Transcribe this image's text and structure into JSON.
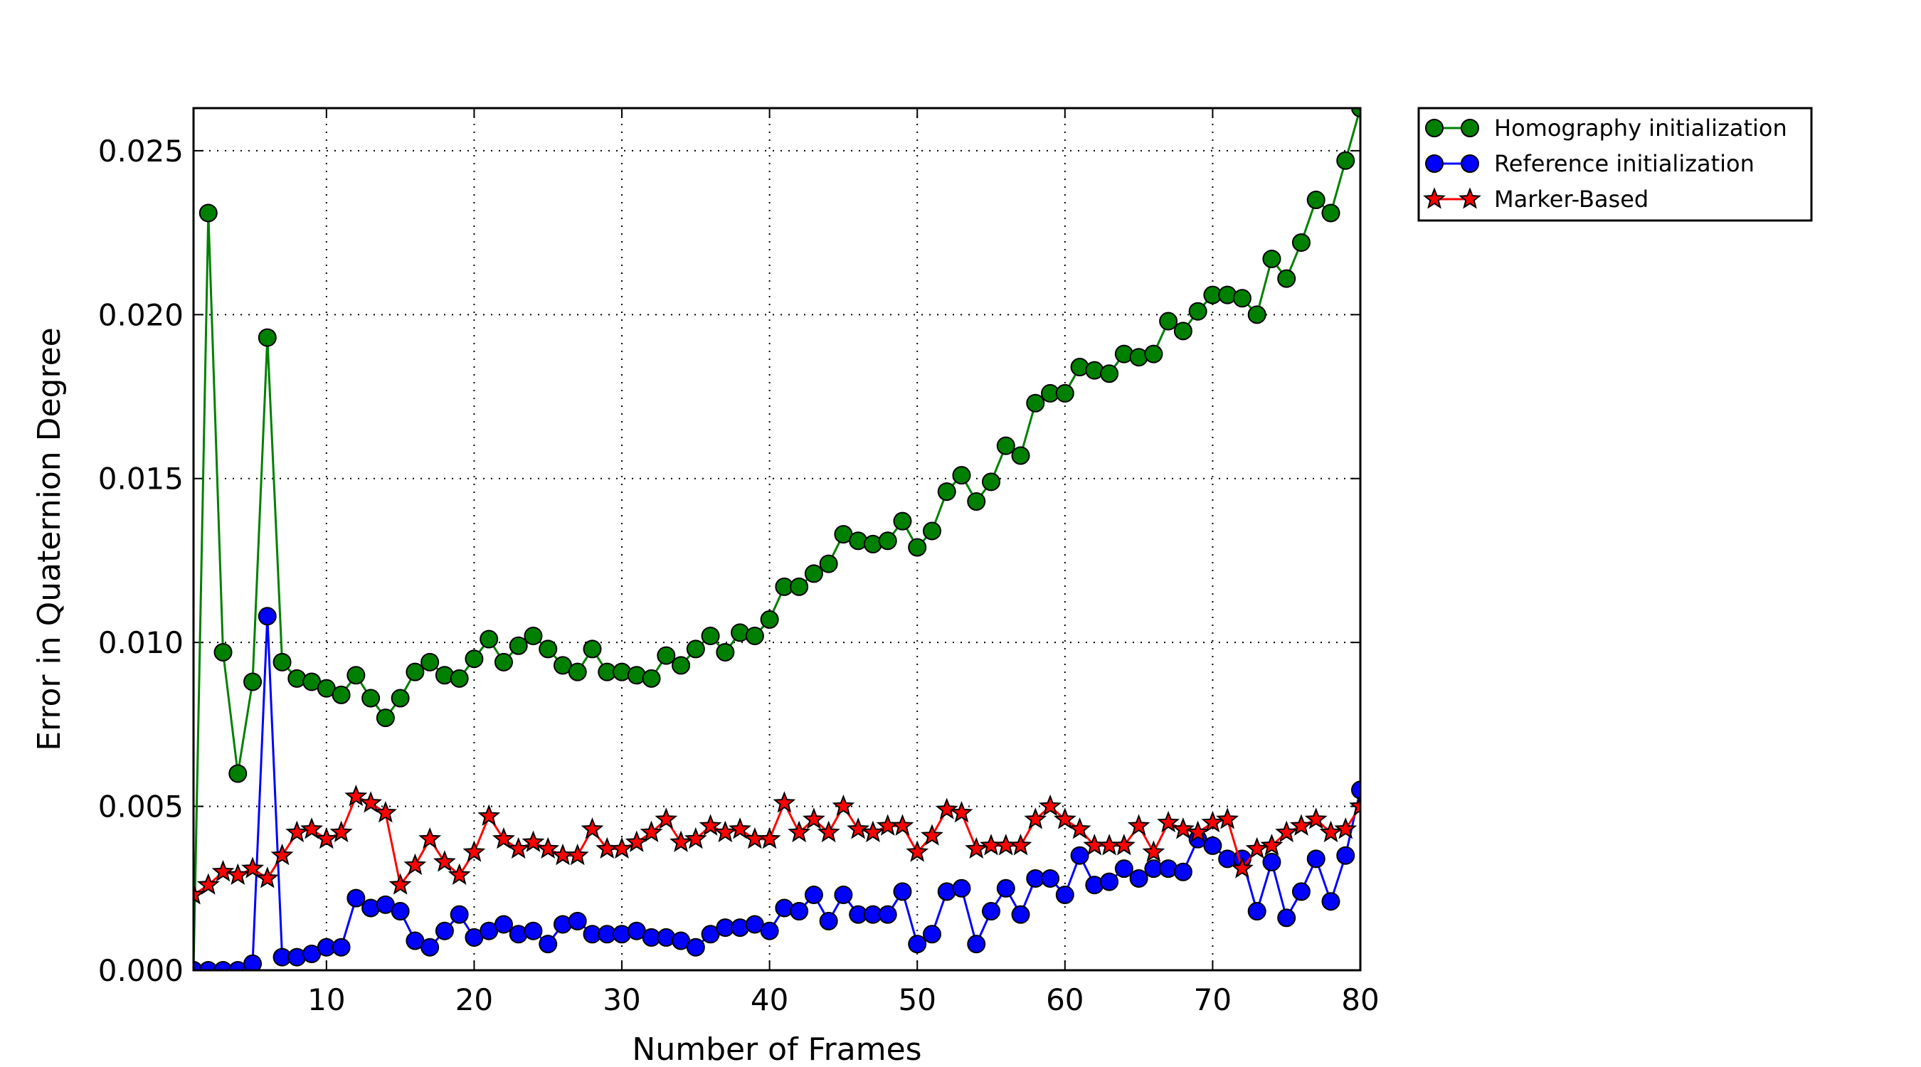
{
  "chart_data": {
    "type": "line",
    "xlabel": "Number of Frames",
    "ylabel": "Error in Quaternion Degree",
    "xlim": [
      1,
      80
    ],
    "ylim": [
      0,
      0.0263
    ],
    "xticks": [
      10,
      20,
      30,
      40,
      50,
      60,
      70,
      80
    ],
    "xtick_labels": [
      "10",
      "20",
      "30",
      "40",
      "50",
      "60",
      "70",
      "80"
    ],
    "yticks": [
      0,
      0.005,
      0.01,
      0.015,
      0.02,
      0.025
    ],
    "ytick_labels": [
      "0.000",
      "0.005",
      "0.010",
      "0.015",
      "0.020",
      "0.025"
    ],
    "grid": true,
    "legend_position": "outside-top-right",
    "x": [
      1,
      2,
      3,
      4,
      5,
      6,
      7,
      8,
      9,
      10,
      11,
      12,
      13,
      14,
      15,
      16,
      17,
      18,
      19,
      20,
      21,
      22,
      23,
      24,
      25,
      26,
      27,
      28,
      29,
      30,
      31,
      32,
      33,
      34,
      35,
      36,
      37,
      38,
      39,
      40,
      41,
      42,
      43,
      44,
      45,
      46,
      47,
      48,
      49,
      50,
      51,
      52,
      53,
      54,
      55,
      56,
      57,
      58,
      59,
      60,
      61,
      62,
      63,
      64,
      65,
      66,
      67,
      68,
      69,
      70,
      71,
      72,
      73,
      74,
      75,
      76,
      77,
      78,
      79,
      80
    ],
    "series": [
      {
        "name": "Homography initialization",
        "color": "#008000",
        "marker": "circle",
        "values": [
          0.0,
          0.0231,
          0.0097,
          0.006,
          0.0088,
          0.0193,
          0.0094,
          0.0089,
          0.0088,
          0.0086,
          0.0084,
          0.009,
          0.0083,
          0.0077,
          0.0083,
          0.0091,
          0.0094,
          0.009,
          0.0089,
          0.0095,
          0.0101,
          0.0094,
          0.0099,
          0.0102,
          0.0098,
          0.0093,
          0.0091,
          0.0098,
          0.0091,
          0.0091,
          0.009,
          0.0089,
          0.0096,
          0.0093,
          0.0098,
          0.0102,
          0.0097,
          0.0103,
          0.0102,
          0.0107,
          0.0117,
          0.0117,
          0.0121,
          0.0124,
          0.0133,
          0.0131,
          0.013,
          0.0131,
          0.0137,
          0.0129,
          0.0134,
          0.0146,
          0.0151,
          0.0143,
          0.0149,
          0.016,
          0.0157,
          0.0173,
          0.0176,
          0.0176,
          0.0184,
          0.0183,
          0.0182,
          0.0188,
          0.0187,
          0.0188,
          0.0198,
          0.0195,
          0.0201,
          0.0206,
          0.0206,
          0.0205,
          0.02,
          0.0217,
          0.0211,
          0.0222,
          0.0235,
          0.0231,
          0.0247,
          0.0263
        ]
      },
      {
        "name": "Reference initialization",
        "color": "#0000ff",
        "marker": "circle",
        "values": [
          0.0,
          0.0,
          0.0,
          0.0,
          0.0002,
          0.0108,
          0.0004,
          0.0004,
          0.0005,
          0.0007,
          0.0007,
          0.0022,
          0.0019,
          0.002,
          0.0018,
          0.0009,
          0.0007,
          0.0012,
          0.0017,
          0.001,
          0.0012,
          0.0014,
          0.0011,
          0.0012,
          0.0008,
          0.0014,
          0.0015,
          0.0011,
          0.0011,
          0.0011,
          0.0012,
          0.001,
          0.001,
          0.0009,
          0.0007,
          0.0011,
          0.0013,
          0.0013,
          0.0014,
          0.0012,
          0.0019,
          0.0018,
          0.0023,
          0.0015,
          0.0023,
          0.0017,
          0.0017,
          0.0017,
          0.0024,
          0.0008,
          0.0011,
          0.0024,
          0.0025,
          0.0008,
          0.0018,
          0.0025,
          0.0017,
          0.0028,
          0.0028,
          0.0023,
          0.0035,
          0.0026,
          0.0027,
          0.0031,
          0.0028,
          0.0031,
          0.0031,
          0.003,
          0.004,
          0.0038,
          0.0034,
          0.0034,
          0.0018,
          0.0033,
          0.0016,
          0.0024,
          0.0034,
          0.0021,
          0.0035,
          0.0055
        ]
      },
      {
        "name": "Marker-Based",
        "color": "#ff0000",
        "marker": "star",
        "values": [
          0.0023,
          0.0026,
          0.003,
          0.0029,
          0.0031,
          0.0028,
          0.0035,
          0.0042,
          0.0043,
          0.004,
          0.0042,
          0.0053,
          0.0051,
          0.0048,
          0.0026,
          0.0032,
          0.004,
          0.0033,
          0.0029,
          0.0036,
          0.0047,
          0.004,
          0.0037,
          0.0039,
          0.0037,
          0.0035,
          0.0035,
          0.0043,
          0.0037,
          0.0037,
          0.0039,
          0.0042,
          0.0046,
          0.0039,
          0.004,
          0.0044,
          0.0042,
          0.0043,
          0.004,
          0.004,
          0.0051,
          0.0042,
          0.0046,
          0.0042,
          0.005,
          0.0043,
          0.0042,
          0.0044,
          0.0044,
          0.0036,
          0.0041,
          0.0049,
          0.0048,
          0.0037,
          0.0038,
          0.0038,
          0.0038,
          0.0046,
          0.005,
          0.0046,
          0.0043,
          0.0038,
          0.0038,
          0.0038,
          0.0044,
          0.0036,
          0.0045,
          0.0043,
          0.0042,
          0.0045,
          0.0046,
          0.0031,
          0.0037,
          0.0038,
          0.0042,
          0.0044,
          0.0046,
          0.0042,
          0.0043,
          0.005
        ]
      }
    ]
  }
}
